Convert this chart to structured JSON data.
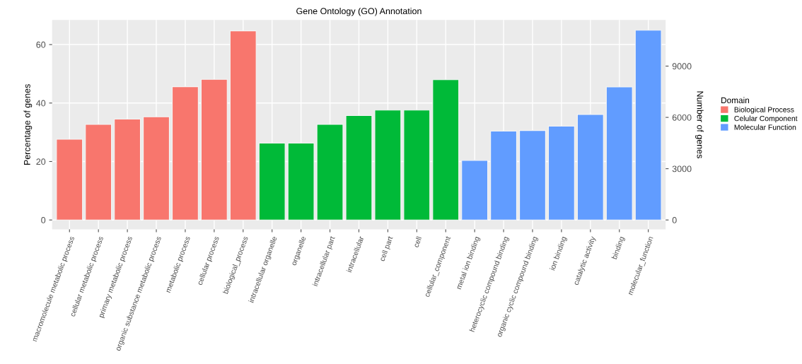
{
  "chart_data": {
    "type": "bar",
    "title": "Gene Ontology (GO) Annotation",
    "ylabel": "Percentage of genes",
    "y2label": "Number of genes",
    "legend_title": "Domain",
    "categories": [
      "macromolecule metabolic process",
      "cellular metabolic process",
      "primary metabolic process",
      "organic substance metabolic process",
      "metabolic process",
      "cellular process",
      "biological_process",
      "intracellular organelle",
      "organelle",
      "intracellular part",
      "intracellular",
      "cell part",
      "cell",
      "cellular_component",
      "metal ion binding",
      "heterocyclic compound binding",
      "organic cyclic compound binding",
      "ion binding",
      "catalytic activity",
      "binding",
      "molecular_function"
    ],
    "series": [
      {
        "name": "Biological Process",
        "color": "#f8766d",
        "values": [
          27.6,
          32.7,
          34.5,
          35.3,
          45.6,
          48.1,
          64.7,
          null,
          null,
          null,
          null,
          null,
          null,
          null,
          null,
          null,
          null,
          null,
          null,
          null,
          null
        ]
      },
      {
        "name": "Celular Component",
        "color": "#00ba38",
        "values": [
          null,
          null,
          null,
          null,
          null,
          null,
          null,
          26.3,
          26.3,
          32.7,
          35.7,
          37.6,
          37.6,
          48.0,
          null,
          null,
          null,
          null,
          null,
          null,
          null
        ]
      },
      {
        "name": "Molecular Function",
        "color": "#619cff",
        "values": [
          null,
          null,
          null,
          null,
          null,
          null,
          null,
          null,
          null,
          null,
          null,
          null,
          null,
          null,
          20.4,
          30.4,
          30.6,
          32.1,
          36.1,
          45.5,
          64.9
        ]
      }
    ],
    "ylim": [
      -3.2,
      68.4
    ],
    "yticks": [
      0,
      20,
      40,
      60
    ],
    "y2lim": [
      -547,
      11695
    ],
    "y2ticks": [
      0,
      3000,
      6000,
      9000
    ],
    "grid": true,
    "legend": "right"
  }
}
